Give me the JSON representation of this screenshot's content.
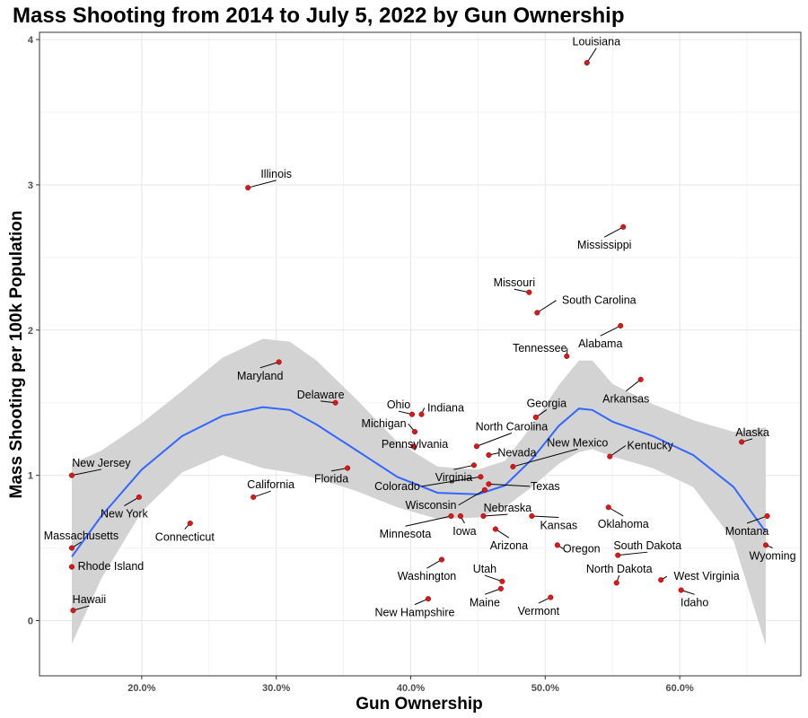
{
  "chart_data": {
    "type": "scatter",
    "title": "Mass Shooting from 2014 to July 5, 2022 by Gun Ownership",
    "xlabel": "Gun Ownership",
    "ylabel": "Mass Shooting per 100k Population",
    "xlim": [
      0.124,
      0.69
    ],
    "ylim": [
      -0.38,
      4.05
    ],
    "x_ticks": [
      0.2,
      0.3,
      0.4,
      0.5,
      0.6
    ],
    "x_tick_labels": [
      "20.0%",
      "30.0%",
      "40.0%",
      "50.0%",
      "60.0%"
    ],
    "y_ticks": [
      0,
      1,
      2,
      3,
      4
    ],
    "y_tick_labels": [
      "0",
      "1",
      "2",
      "3",
      "4"
    ],
    "grid": true,
    "point_color": "#d7191c",
    "smooth_color": "#3366ff",
    "band_color": "#d3d3d3",
    "points": [
      {
        "name": "Louisiana",
        "x": 0.531,
        "y": 3.84,
        "lx": 0.538,
        "ly": 3.96,
        "anchor": "middle"
      },
      {
        "name": "Illinois",
        "x": 0.279,
        "y": 2.98,
        "lx": 0.3,
        "ly": 3.05,
        "anchor": "middle"
      },
      {
        "name": "Mississippi",
        "x": 0.558,
        "y": 2.71,
        "lx": 0.544,
        "ly": 2.56,
        "anchor": "middle"
      },
      {
        "name": "Missouri",
        "x": 0.488,
        "y": 2.26,
        "lx": 0.477,
        "ly": 2.3,
        "anchor": "middle"
      },
      {
        "name": "South Carolina",
        "x": 0.494,
        "y": 2.12,
        "lx": 0.54,
        "ly": 2.18,
        "anchor": "middle"
      },
      {
        "name": "Alabama",
        "x": 0.556,
        "y": 2.03,
        "lx": 0.541,
        "ly": 1.88,
        "anchor": "middle"
      },
      {
        "name": "Tennessee",
        "x": 0.516,
        "y": 1.82,
        "lx": 0.496,
        "ly": 1.85,
        "anchor": "middle"
      },
      {
        "name": "Maryland",
        "x": 0.302,
        "y": 1.78,
        "lx": 0.288,
        "ly": 1.66,
        "anchor": "middle"
      },
      {
        "name": "Arkansas",
        "x": 0.571,
        "y": 1.66,
        "lx": 0.56,
        "ly": 1.5,
        "anchor": "middle"
      },
      {
        "name": "Delaware",
        "x": 0.344,
        "y": 1.5,
        "lx": 0.333,
        "ly": 1.53,
        "anchor": "middle"
      },
      {
        "name": "Ohio",
        "x": 0.401,
        "y": 1.42,
        "lx": 0.391,
        "ly": 1.46,
        "anchor": "middle"
      },
      {
        "name": "Indiana",
        "x": 0.408,
        "y": 1.42,
        "lx": 0.426,
        "ly": 1.44,
        "anchor": "middle"
      },
      {
        "name": "Georgia",
        "x": 0.493,
        "y": 1.4,
        "lx": 0.501,
        "ly": 1.47,
        "anchor": "middle"
      },
      {
        "name": "Michigan",
        "x": 0.403,
        "y": 1.3,
        "lx": 0.38,
        "ly": 1.33,
        "anchor": "middle"
      },
      {
        "name": "North Carolina",
        "x": 0.449,
        "y": 1.2,
        "lx": 0.475,
        "ly": 1.31,
        "anchor": "middle"
      },
      {
        "name": "Pennsylvania",
        "x": 0.402,
        "y": 1.2,
        "lx": 0.403,
        "ly": 1.19,
        "anchor": "middle"
      },
      {
        "name": "Alaska",
        "x": 0.646,
        "y": 1.23,
        "lx": 0.654,
        "ly": 1.27,
        "anchor": "middle"
      },
      {
        "name": "Nevada",
        "x": 0.458,
        "y": 1.14,
        "lx": 0.479,
        "ly": 1.13,
        "anchor": "middle"
      },
      {
        "name": "New Mexico",
        "x": 0.476,
        "y": 1.06,
        "lx": 0.524,
        "ly": 1.2,
        "anchor": "middle"
      },
      {
        "name": "Kentucky",
        "x": 0.548,
        "y": 1.13,
        "lx": 0.578,
        "ly": 1.18,
        "anchor": "middle"
      },
      {
        "name": "Virginia",
        "x": 0.447,
        "y": 1.07,
        "lx": 0.432,
        "ly": 0.96,
        "anchor": "middle"
      },
      {
        "name": "New Jersey",
        "x": 0.148,
        "y": 1.0,
        "lx": 0.17,
        "ly": 1.06,
        "anchor": "middle"
      },
      {
        "name": "Florida",
        "x": 0.353,
        "y": 1.05,
        "lx": 0.341,
        "ly": 0.95,
        "anchor": "middle"
      },
      {
        "name": "Colorado",
        "x": 0.452,
        "y": 0.99,
        "lx": 0.39,
        "ly": 0.9,
        "anchor": "middle"
      },
      {
        "name": "Texas",
        "x": 0.458,
        "y": 0.94,
        "lx": 0.5,
        "ly": 0.9,
        "anchor": "middle"
      },
      {
        "name": "California",
        "x": 0.283,
        "y": 0.85,
        "lx": 0.296,
        "ly": 0.91,
        "anchor": "middle"
      },
      {
        "name": "New York",
        "x": 0.198,
        "y": 0.85,
        "lx": 0.187,
        "ly": 0.71,
        "anchor": "middle"
      },
      {
        "name": "Wisconsin",
        "x": 0.455,
        "y": 0.9,
        "lx": 0.415,
        "ly": 0.77,
        "anchor": "middle"
      },
      {
        "name": "Oklahoma",
        "x": 0.547,
        "y": 0.78,
        "lx": 0.558,
        "ly": 0.64,
        "anchor": "middle"
      },
      {
        "name": "Nebraska",
        "x": 0.454,
        "y": 0.72,
        "lx": 0.472,
        "ly": 0.75,
        "anchor": "middle"
      },
      {
        "name": "Kansas",
        "x": 0.49,
        "y": 0.72,
        "lx": 0.51,
        "ly": 0.63,
        "anchor": "middle"
      },
      {
        "name": "Minnesota",
        "x": 0.43,
        "y": 0.72,
        "lx": 0.396,
        "ly": 0.57,
        "anchor": "middle"
      },
      {
        "name": "Iowa",
        "x": 0.437,
        "y": 0.72,
        "lx": 0.44,
        "ly": 0.59,
        "anchor": "middle"
      },
      {
        "name": "Montana",
        "x": 0.665,
        "y": 0.72,
        "lx": 0.65,
        "ly": 0.59,
        "anchor": "middle"
      },
      {
        "name": "Connecticut",
        "x": 0.236,
        "y": 0.67,
        "lx": 0.232,
        "ly": 0.55,
        "anchor": "middle"
      },
      {
        "name": "Arizona",
        "x": 0.463,
        "y": 0.63,
        "lx": 0.473,
        "ly": 0.49,
        "anchor": "middle"
      },
      {
        "name": "Massachusetts",
        "x": 0.148,
        "y": 0.5,
        "lx": 0.155,
        "ly": 0.56,
        "anchor": "middle"
      },
      {
        "name": "Oregon",
        "x": 0.509,
        "y": 0.52,
        "lx": 0.527,
        "ly": 0.47,
        "anchor": "middle"
      },
      {
        "name": "Wyoming",
        "x": 0.664,
        "y": 0.52,
        "lx": 0.669,
        "ly": 0.42,
        "anchor": "middle"
      },
      {
        "name": "South Dakota",
        "x": 0.554,
        "y": 0.45,
        "lx": 0.576,
        "ly": 0.49,
        "anchor": "middle"
      },
      {
        "name": "Washington",
        "x": 0.423,
        "y": 0.42,
        "lx": 0.412,
        "ly": 0.28,
        "anchor": "middle"
      },
      {
        "name": "Rhode Island",
        "x": 0.148,
        "y": 0.37,
        "lx": 0.177,
        "ly": 0.35,
        "anchor": "middle"
      },
      {
        "name": "Utah",
        "x": 0.468,
        "y": 0.27,
        "lx": 0.455,
        "ly": 0.33,
        "anchor": "middle"
      },
      {
        "name": "North Dakota",
        "x": 0.553,
        "y": 0.26,
        "lx": 0.555,
        "ly": 0.33,
        "anchor": "middle"
      },
      {
        "name": "West Virginia",
        "x": 0.586,
        "y": 0.28,
        "lx": 0.62,
        "ly": 0.28,
        "anchor": "middle"
      },
      {
        "name": "Maine",
        "x": 0.467,
        "y": 0.22,
        "lx": 0.455,
        "ly": 0.1,
        "anchor": "middle"
      },
      {
        "name": "Idaho",
        "x": 0.601,
        "y": 0.21,
        "lx": 0.611,
        "ly": 0.1,
        "anchor": "middle"
      },
      {
        "name": "Vermont",
        "x": 0.504,
        "y": 0.16,
        "lx": 0.495,
        "ly": 0.04,
        "anchor": "middle"
      },
      {
        "name": "New Hampshire",
        "x": 0.413,
        "y": 0.15,
        "lx": 0.403,
        "ly": 0.03,
        "anchor": "middle"
      },
      {
        "name": "Hawaii",
        "x": 0.149,
        "y": 0.07,
        "lx": 0.161,
        "ly": 0.12,
        "anchor": "middle"
      }
    ],
    "smooth": [
      {
        "x": 0.148,
        "y": 0.44,
        "lo": -0.16,
        "hi": 1.08
      },
      {
        "x": 0.17,
        "y": 0.72,
        "lo": 0.29,
        "hi": 1.17
      },
      {
        "x": 0.2,
        "y": 1.04,
        "lo": 0.75,
        "hi": 1.36
      },
      {
        "x": 0.23,
        "y": 1.27,
        "lo": 1.02,
        "hi": 1.58
      },
      {
        "x": 0.26,
        "y": 1.41,
        "lo": 1.14,
        "hi": 1.81
      },
      {
        "x": 0.29,
        "y": 1.47,
        "lo": 1.05,
        "hi": 1.94
      },
      {
        "x": 0.31,
        "y": 1.45,
        "lo": 1.02,
        "hi": 1.92
      },
      {
        "x": 0.33,
        "y": 1.35,
        "lo": 0.98,
        "hi": 1.79
      },
      {
        "x": 0.36,
        "y": 1.17,
        "lo": 0.89,
        "hi": 1.52
      },
      {
        "x": 0.39,
        "y": 0.99,
        "lo": 0.78,
        "hi": 1.23
      },
      {
        "x": 0.42,
        "y": 0.88,
        "lo": 0.7,
        "hi": 1.06
      },
      {
        "x": 0.45,
        "y": 0.87,
        "lo": 0.71,
        "hi": 1.04
      },
      {
        "x": 0.47,
        "y": 0.93,
        "lo": 0.78,
        "hi": 1.1
      },
      {
        "x": 0.49,
        "y": 1.11,
        "lo": 0.92,
        "hi": 1.34
      },
      {
        "x": 0.51,
        "y": 1.34,
        "lo": 1.08,
        "hi": 1.62
      },
      {
        "x": 0.525,
        "y": 1.46,
        "lo": 1.16,
        "hi": 1.79
      },
      {
        "x": 0.535,
        "y": 1.45,
        "lo": 1.18,
        "hi": 1.79
      },
      {
        "x": 0.55,
        "y": 1.37,
        "lo": 1.13,
        "hi": 1.63
      },
      {
        "x": 0.58,
        "y": 1.27,
        "lo": 1.05,
        "hi": 1.49
      },
      {
        "x": 0.61,
        "y": 1.14,
        "lo": 0.92,
        "hi": 1.38
      },
      {
        "x": 0.64,
        "y": 0.92,
        "lo": 0.55,
        "hi": 1.3
      },
      {
        "x": 0.664,
        "y": 0.61,
        "lo": -0.17,
        "hi": 1.33
      }
    ]
  }
}
